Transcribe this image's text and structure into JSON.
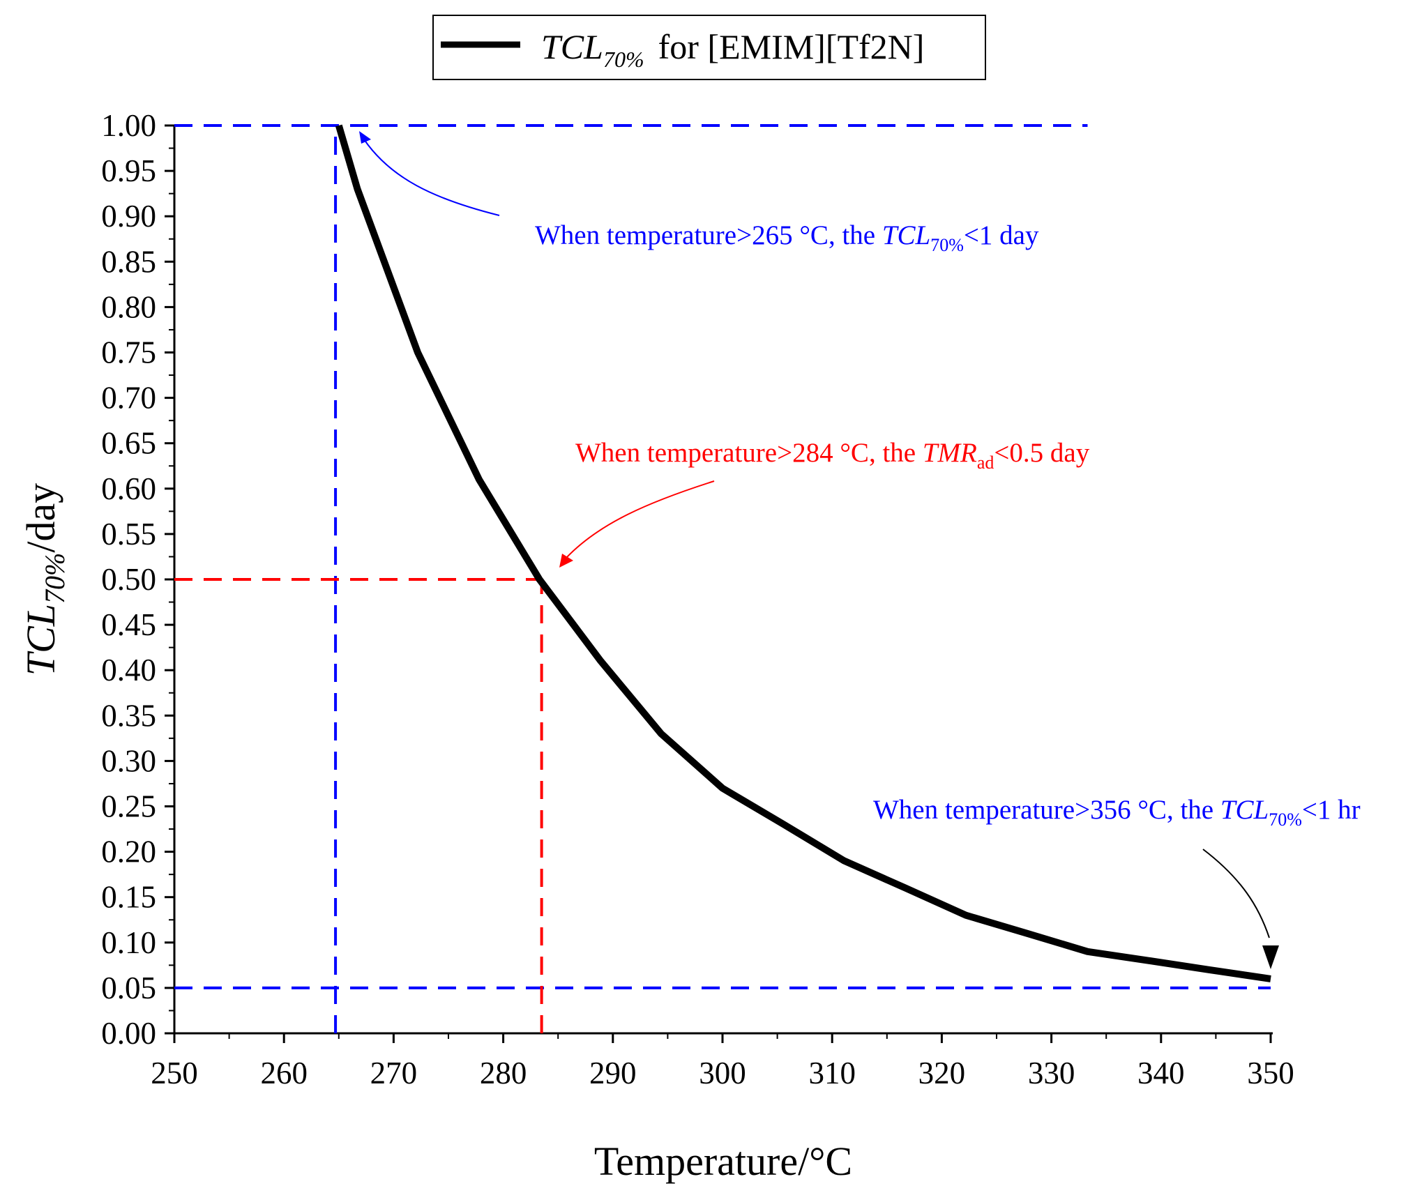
{
  "chart_data": {
    "type": "line",
    "xlabel": "Temperature/°C",
    "ylabel": {
      "main": "TCL",
      "sub": "70%",
      "suffix": "/day"
    },
    "xlim": [
      250,
      350
    ],
    "ylim": [
      0,
      1
    ],
    "xticks": [
      "250",
      "260",
      "270",
      "280",
      "290",
      "300",
      "310",
      "320",
      "330",
      "340",
      "350"
    ],
    "yticks": [
      "0.00",
      "0.05",
      "0.10",
      "0.15",
      "0.20",
      "0.25",
      "0.30",
      "0.35",
      "0.40",
      "0.45",
      "0.50",
      "0.55",
      "0.60",
      "0.65",
      "0.70",
      "0.75",
      "0.80",
      "0.85",
      "0.90",
      "0.95",
      "1.00"
    ],
    "legend": {
      "main": "TCL",
      "sub": "70%",
      "suffix": "for [EMIM][Tf2N]",
      "position": "top-center"
    },
    "series": [
      {
        "name": "TCL70% for [EMIM][Tf2N]",
        "color": "#000000",
        "x": [
          265,
          266.7,
          272.2,
          277.8,
          283.3,
          288.9,
          294.4,
          300,
          305.6,
          311.1,
          316.7,
          322.2,
          327.8,
          333.3,
          338.9,
          344.4,
          350
        ],
        "y": [
          1.0,
          0.93,
          0.75,
          0.61,
          0.5,
          0.41,
          0.33,
          0.27,
          0.23,
          0.19,
          0.16,
          0.13,
          0.11,
          0.09,
          0.08,
          0.07,
          0.06
        ]
      }
    ],
    "reference_lines": [
      {
        "orientation": "horizontal",
        "y": 1.0,
        "from_x": 250,
        "to_x": 333.3,
        "color": "#0000ff"
      },
      {
        "orientation": "vertical",
        "x": 264.7,
        "from_y": 0,
        "to_y": 1.0,
        "color": "#0000ff"
      },
      {
        "orientation": "horizontal",
        "y": 0.05,
        "from_x": 250,
        "to_x": 350,
        "color": "#0000ff"
      },
      {
        "orientation": "horizontal",
        "y": 0.5,
        "from_x": 250,
        "to_x": 283.5,
        "color": "#ff0000"
      },
      {
        "orientation": "vertical",
        "x": 283.5,
        "from_y": 0,
        "to_y": 0.5,
        "color": "#ff0000"
      }
    ],
    "annotations": [
      {
        "id": "a265",
        "color": "#0000ff",
        "prefix": "When temperature>265 °C, the ",
        "italic": "TCL",
        "sub": "70%",
        "suffix": "<1 day"
      },
      {
        "id": "a284",
        "color": "#ff0000",
        "prefix": "When temperature>284 °C, the ",
        "italic": "TMR",
        "sub": "ad",
        "suffix": "<0.5 day"
      },
      {
        "id": "a356",
        "color": "#0000ff",
        "prefix": "When temperature>356 °C, the ",
        "italic": "TCL",
        "sub": "70%",
        "suffix": "<1 hr"
      }
    ]
  }
}
